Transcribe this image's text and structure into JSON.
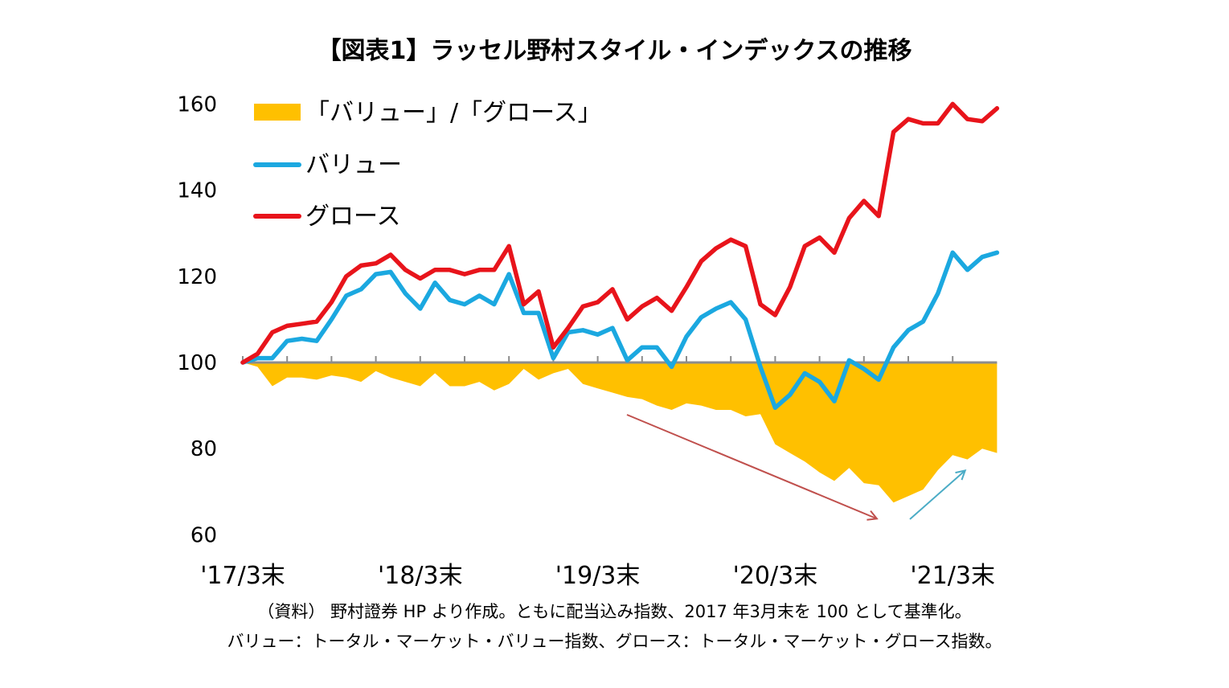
{
  "title": "【図表1】ラッセル野村スタイル・インデックスの推移",
  "notes": [
    "（資料） 野村證券 HP より作成。ともに配当込み指数、2017 年3月末を 100 として基準化。",
    "バリュー：トータル・マーケット・バリュー指数、グロース：トータル・マーケット・グロース指数。"
  ],
  "colors": {
    "area": "#FFC000",
    "value": "#1BA8E0",
    "growth": "#E8141B",
    "axis": "#8C8C8C",
    "arrow_down": "#C0504D",
    "arrow_up": "#4BACC6"
  },
  "chart_data": {
    "type": "line",
    "ylim": [
      60,
      160
    ],
    "yticks": [
      "60",
      "80",
      "100",
      "120",
      "140",
      "160"
    ],
    "xtick_labels": [
      "'17/3末",
      "'18/3末",
      "'19/3末",
      "'20/3末",
      "'21/3末"
    ],
    "baseline": 100,
    "legend_position": "top-left",
    "legend": [
      "「バリュー」/「グロース」",
      "バリュー",
      "グロース"
    ],
    "x_months": 49,
    "series": [
      {
        "name": "グロース",
        "kind": "line",
        "values": [
          100,
          102,
          107,
          108.5,
          109,
          109.5,
          114,
          120,
          122.5,
          123,
          125,
          121.5,
          119.5,
          121.5,
          121.5,
          120.5,
          121.5,
          121.5,
          127,
          113.5,
          116.5,
          103.5,
          108,
          113,
          114,
          117,
          110,
          113,
          115,
          112,
          117.5,
          123.5,
          126.5,
          128.5,
          127,
          113.5,
          111,
          117.5,
          127,
          129,
          125.5,
          133.5,
          137.5,
          134,
          153.5,
          156.5,
          155.5,
          155.5,
          160,
          156.5,
          156,
          159
        ]
      },
      {
        "name": "バリュー",
        "kind": "line",
        "values": [
          100,
          101,
          101,
          105,
          105.5,
          105,
          110,
          115.5,
          117,
          120.5,
          121,
          116,
          112.5,
          118.5,
          114.5,
          113.5,
          115.5,
          113.5,
          120.5,
          111.5,
          111.5,
          101,
          107,
          107.5,
          106.5,
          108,
          100.5,
          103.5,
          103.5,
          99,
          106,
          110.5,
          112.5,
          114,
          110,
          99,
          89.5,
          92.5,
          97.5,
          95.5,
          91,
          100.5,
          98.5,
          96,
          103.5,
          107.5,
          109.5,
          116,
          125.5,
          121.5,
          124.5,
          125.5
        ]
      },
      {
        "name": "「バリュー」/「グロース」",
        "kind": "area",
        "values": [
          100,
          99,
          94.5,
          96.5,
          96.5,
          96,
          97,
          96.5,
          95.5,
          98,
          96.5,
          95.5,
          94.5,
          97.5,
          94.5,
          94.5,
          95.5,
          93.5,
          95,
          98.5,
          96,
          97.5,
          98.5,
          95,
          94,
          93,
          92,
          91.5,
          90,
          89,
          90.5,
          90,
          89,
          89,
          87.5,
          88,
          81,
          79,
          77,
          74.5,
          72.5,
          75.5,
          72,
          71.5,
          67.5,
          69,
          70.5,
          75,
          78.5,
          77.5,
          80,
          79
        ]
      }
    ]
  }
}
